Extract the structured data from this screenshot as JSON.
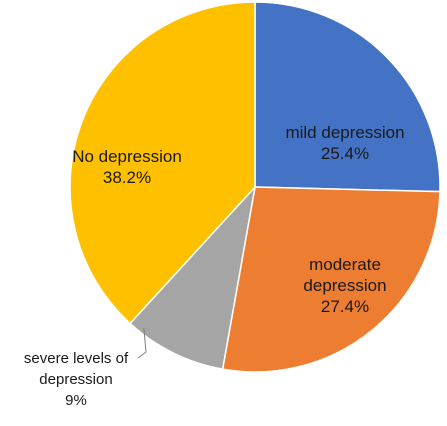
{
  "chart_data": {
    "type": "pie",
    "title": "",
    "start_angle_deg": 0,
    "direction": "clockwise",
    "slices": [
      {
        "label_lines": [
          "mild depression"
        ],
        "value_text": "25.4%",
        "value": 25.4,
        "color": "#4472C4"
      },
      {
        "label_lines": [
          "moderate",
          "depression"
        ],
        "value_text": "27.4%",
        "value": 27.4,
        "color": "#ED7D31"
      },
      {
        "label_lines": [
          "severe levels of",
          "depression"
        ],
        "value_text": "9%",
        "value": 9,
        "color": "#A5A5A5",
        "label_position": "outside-left-with-leader"
      },
      {
        "label_lines": [
          "No depression"
        ],
        "value_text": "38.2%",
        "value": 38.2,
        "color": "#FFC000"
      }
    ],
    "legend": "none"
  }
}
